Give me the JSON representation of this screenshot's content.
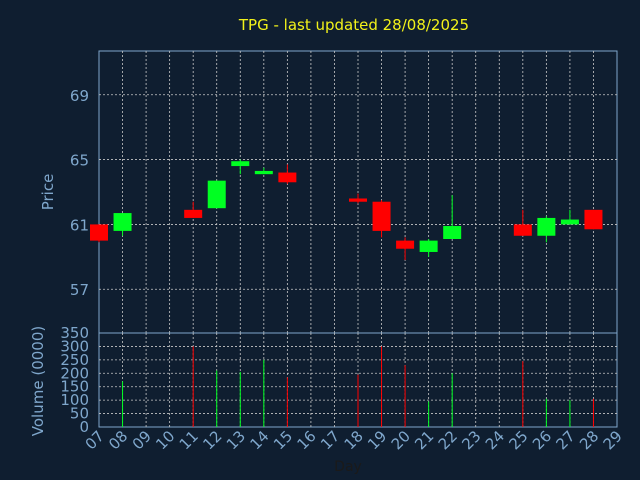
{
  "chart_data": [
    {
      "type": "candlestick",
      "title": "TPG - last updated 28/08/2025",
      "ylabel": "Price",
      "ylim": [
        54.3,
        71.7
      ],
      "yticks": [
        57,
        61,
        65,
        69
      ],
      "grid": true,
      "colors": {
        "up": "#00ff22",
        "down": "#ff0000",
        "grid": "#c8c8c8",
        "axis": "#7fa7cc",
        "title": "#f2f21a"
      },
      "candles": [
        {
          "day": 7,
          "open": 61.0,
          "close": 60.0,
          "high": 61.0,
          "low": 59.9
        },
        {
          "day": 8,
          "open": 60.6,
          "close": 61.7,
          "high": 61.7,
          "low": 60.3
        },
        {
          "day": 11,
          "open": 61.9,
          "close": 61.4,
          "high": 62.4,
          "low": 61.4
        },
        {
          "day": 12,
          "open": 62.0,
          "close": 63.7,
          "high": 63.7,
          "low": 62.0
        },
        {
          "day": 13,
          "open": 64.6,
          "close": 64.9,
          "high": 65.0,
          "low": 64.1
        },
        {
          "day": 14,
          "open": 64.1,
          "close": 64.3,
          "high": 64.5,
          "low": 64.1
        },
        {
          "day": 15,
          "open": 64.2,
          "close": 63.6,
          "high": 64.7,
          "low": 63.5
        },
        {
          "day": 18,
          "open": 62.6,
          "close": 62.4,
          "high": 62.9,
          "low": 62.3
        },
        {
          "day": 19,
          "open": 62.4,
          "close": 60.6,
          "high": 62.5,
          "low": 60.2
        },
        {
          "day": 20,
          "open": 60.0,
          "close": 59.5,
          "high": 60.2,
          "low": 58.8
        },
        {
          "day": 21,
          "open": 59.3,
          "close": 60.0,
          "high": 60.1,
          "low": 59.0
        },
        {
          "day": 22,
          "open": 60.1,
          "close": 60.9,
          "high": 62.8,
          "low": 60.1
        },
        {
          "day": 25,
          "open": 61.0,
          "close": 60.3,
          "high": 61.9,
          "low": 60.3
        },
        {
          "day": 26,
          "open": 60.3,
          "close": 61.4,
          "high": 61.5,
          "low": 59.9
        },
        {
          "day": 27,
          "open": 61.0,
          "close": 61.3,
          "high": 61.9,
          "low": 61.0
        },
        {
          "day": 28,
          "open": 61.9,
          "close": 60.7,
          "high": 61.9,
          "low": 60.7
        }
      ]
    },
    {
      "type": "bar",
      "ylabel": "Volume (0000)",
      "xlabel": "Day",
      "ylim": [
        0,
        350
      ],
      "yticks": [
        0,
        50,
        100,
        150,
        200,
        250,
        300,
        350
      ],
      "xticks": [
        "07",
        "08",
        "09",
        "10",
        "11",
        "12",
        "13",
        "14",
        "15",
        "16",
        "17",
        "18",
        "19",
        "20",
        "21",
        "22",
        "23",
        "24",
        "25",
        "26",
        "27",
        "28",
        "29"
      ],
      "bars": [
        {
          "day": 8,
          "value": 170,
          "dir": "up"
        },
        {
          "day": 11,
          "value": 300,
          "dir": "down"
        },
        {
          "day": 12,
          "value": 210,
          "dir": "up"
        },
        {
          "day": 13,
          "value": 205,
          "dir": "up"
        },
        {
          "day": 14,
          "value": 250,
          "dir": "up"
        },
        {
          "day": 15,
          "value": 185,
          "dir": "down"
        },
        {
          "day": 18,
          "value": 195,
          "dir": "down"
        },
        {
          "day": 19,
          "value": 300,
          "dir": "down"
        },
        {
          "day": 20,
          "value": 230,
          "dir": "down"
        },
        {
          "day": 21,
          "value": 95,
          "dir": "up"
        },
        {
          "day": 22,
          "value": 200,
          "dir": "up"
        },
        {
          "day": 25,
          "value": 245,
          "dir": "down"
        },
        {
          "day": 26,
          "value": 105,
          "dir": "up"
        },
        {
          "day": 27,
          "value": 100,
          "dir": "up"
        },
        {
          "day": 28,
          "value": 105,
          "dir": "down"
        }
      ]
    }
  ]
}
